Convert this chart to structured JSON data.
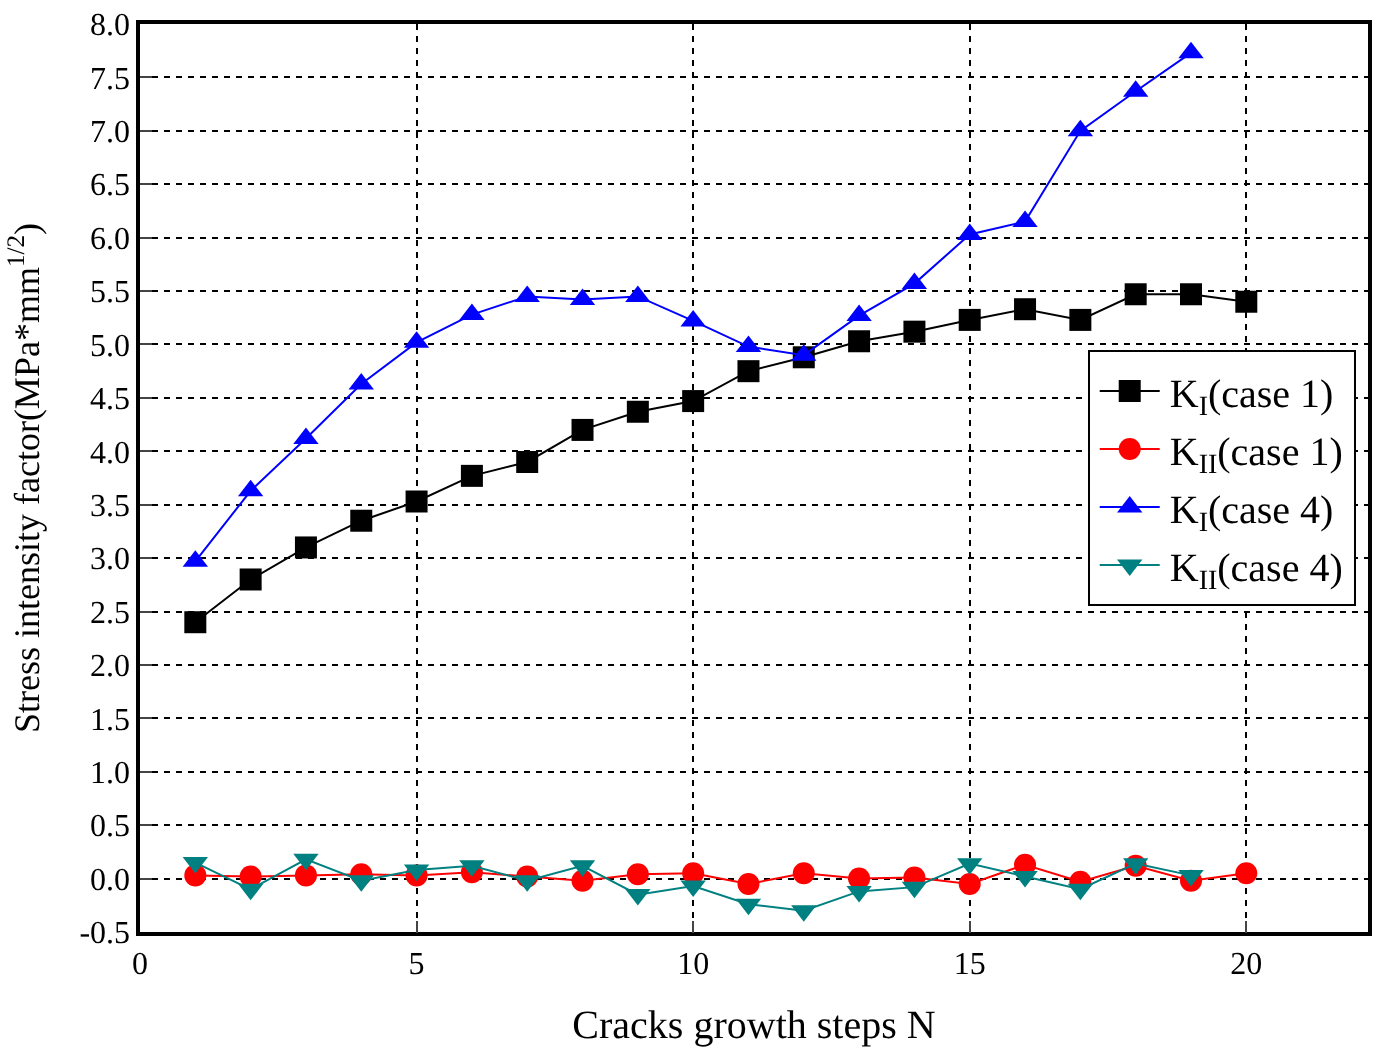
{
  "chart_data": {
    "type": "line",
    "xlabel": "Cracks growth steps N",
    "ylabel": "Stress intensity factor(MPa*mm$^{1/2}$)",
    "x": [
      1,
      2,
      3,
      4,
      5,
      6,
      7,
      8,
      9,
      10,
      11,
      12,
      13,
      14,
      15,
      16,
      17,
      18,
      19,
      20
    ],
    "xlim": [
      0,
      22.2
    ],
    "xticks": [
      0,
      5,
      10,
      15,
      20
    ],
    "ylim": [
      -0.5,
      8.0
    ],
    "yticks": [
      {
        "value": -0.5,
        "label": "-0.5"
      },
      {
        "value": 0,
        "label": "0.0"
      },
      0.5,
      {
        "value": 1,
        "label": "1.0"
      },
      1.5,
      {
        "value": 2,
        "label": "2.0"
      },
      2.5,
      {
        "value": 3,
        "label": "3.0"
      },
      3.5,
      {
        "value": 4,
        "label": "4.0"
      },
      4.5,
      {
        "value": 5,
        "label": "5.0"
      },
      5.5,
      {
        "value": 6,
        "label": "6.0"
      },
      6.5,
      {
        "value": 7,
        "label": "7.0"
      },
      7.5,
      {
        "value": 8,
        "label": "8.0"
      }
    ],
    "grid": true,
    "legend": "right",
    "series": [
      {
        "name": "K$_{I}$(case 1)",
        "color": "#000000",
        "marker": "square",
        "values": [
          2.4,
          2.8,
          3.1,
          3.35,
          3.53,
          3.77,
          3.9,
          4.2,
          4.37,
          4.47,
          4.75,
          4.88,
          5.03,
          5.12,
          5.23,
          5.33,
          5.23,
          5.47,
          5.47,
          5.4
        ]
      },
      {
        "name": "K$_{II}$(case 1)",
        "color": "#ff0000",
        "marker": "circle",
        "values": [
          0.03,
          0.02,
          0.03,
          0.04,
          0.03,
          0.06,
          0.02,
          -0.02,
          0.04,
          0.05,
          -0.05,
          0.05,
          0.0,
          0.01,
          -0.05,
          0.13,
          -0.03,
          0.12,
          -0.02,
          0.05
        ]
      },
      {
        "name": "K$_{I}$(case 4)",
        "color": "#0000ff",
        "marker": "triangle",
        "values": [
          2.97,
          3.63,
          4.12,
          4.63,
          5.02,
          5.28,
          5.45,
          5.42,
          5.45,
          5.22,
          4.98,
          4.9,
          5.27,
          5.57,
          6.03,
          6.15,
          7.0,
          7.37,
          7.73,
          null
        ]
      },
      {
        "name": "K$_{II}$(case 4)",
        "color": "#008080",
        "marker": "triangle-down",
        "values": [
          0.15,
          -0.1,
          0.18,
          -0.02,
          0.08,
          0.12,
          -0.02,
          0.12,
          -0.15,
          -0.07,
          -0.24,
          -0.3,
          -0.12,
          -0.08,
          0.14,
          0.02,
          -0.1,
          0.14,
          0.03,
          null
        ]
      }
    ]
  }
}
